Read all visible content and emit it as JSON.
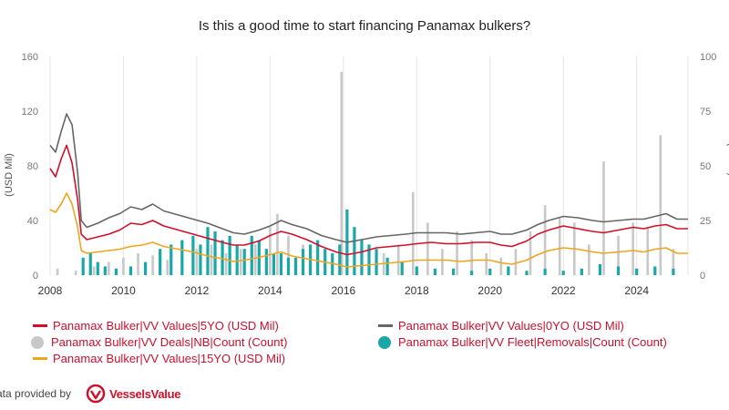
{
  "chart_data": {
    "type": "line",
    "title": "Is this a good time to start financing Panamax bulkers?",
    "ylabel_left": "(USD Mil)",
    "ylabel_right": "(Count)",
    "xlim": [
      2008,
      2025.4
    ],
    "ylim_left": [
      0,
      160
    ],
    "ylim_right": [
      0,
      100
    ],
    "x_ticks": [
      "2008",
      "2010",
      "2012",
      "2014",
      "2016",
      "2018",
      "2020",
      "2022",
      "2024"
    ],
    "y_ticks_left": [
      "0",
      "40",
      "80",
      "120",
      "160"
    ],
    "y_ticks_right": [
      "0",
      "25",
      "50",
      "75",
      "100"
    ],
    "grid": "vertical",
    "legend_position": "bottom",
    "series": [
      {
        "name": "Panamax Bulker|VV Values|5YO (USD Mil)",
        "axis": "left",
        "kind": "line",
        "color": "#d0102a",
        "x": [
          2008.0,
          2008.15,
          2008.3,
          2008.45,
          2008.6,
          2008.75,
          2008.85,
          2009.0,
          2009.3,
          2009.6,
          2009.9,
          2010.2,
          2010.5,
          2010.8,
          2011.1,
          2011.5,
          2011.9,
          2012.3,
          2012.7,
          2013.0,
          2013.3,
          2013.7,
          2014.0,
          2014.3,
          2014.6,
          2015.0,
          2015.4,
          2015.8,
          2016.1,
          2016.5,
          2016.9,
          2017.3,
          2017.7,
          2018.0,
          2018.4,
          2018.8,
          2019.2,
          2019.6,
          2020.0,
          2020.3,
          2020.6,
          2021.0,
          2021.3,
          2021.6,
          2022.0,
          2022.4,
          2022.8,
          2023.1,
          2023.5,
          2023.9,
          2024.2,
          2024.5,
          2024.8,
          2025.1,
          2025.4
        ],
        "y": [
          78,
          72,
          85,
          95,
          82,
          55,
          30,
          26,
          28,
          30,
          33,
          38,
          37,
          40,
          36,
          33,
          30,
          27,
          24,
          22,
          22,
          25,
          29,
          32,
          30,
          26,
          21,
          17,
          15,
          17,
          20,
          21,
          22,
          23,
          24,
          23,
          23,
          24,
          24,
          22,
          21,
          25,
          30,
          33,
          36,
          34,
          32,
          31,
          33,
          35,
          34,
          36,
          37,
          34,
          34
        ]
      },
      {
        "name": "Panamax Bulker|VV Values|0YO (USD Mil)",
        "axis": "left",
        "kind": "line",
        "color": "#666666",
        "x": [
          2008.0,
          2008.15,
          2008.3,
          2008.45,
          2008.6,
          2008.75,
          2008.85,
          2009.0,
          2009.3,
          2009.6,
          2009.9,
          2010.2,
          2010.5,
          2010.8,
          2011.1,
          2011.5,
          2011.9,
          2012.3,
          2012.7,
          2013.0,
          2013.3,
          2013.7,
          2014.0,
          2014.3,
          2014.6,
          2015.0,
          2015.4,
          2015.8,
          2016.1,
          2016.5,
          2016.9,
          2017.3,
          2017.7,
          2018.0,
          2018.4,
          2018.8,
          2019.2,
          2019.6,
          2020.0,
          2020.3,
          2020.6,
          2021.0,
          2021.3,
          2021.6,
          2022.0,
          2022.4,
          2022.8,
          2023.1,
          2023.5,
          2023.9,
          2024.2,
          2024.5,
          2024.8,
          2025.1,
          2025.4
        ],
        "y": [
          95,
          90,
          105,
          118,
          110,
          75,
          40,
          35,
          38,
          42,
          45,
          50,
          48,
          52,
          47,
          44,
          41,
          38,
          34,
          31,
          30,
          33,
          36,
          40,
          37,
          34,
          29,
          26,
          24,
          26,
          28,
          29,
          30,
          31,
          31,
          31,
          30,
          31,
          32,
          30,
          30,
          33,
          37,
          40,
          43,
          42,
          40,
          39,
          40,
          41,
          41,
          43,
          45,
          41,
          41
        ]
      },
      {
        "name": "Panamax Bulker|VV Values|15YO (USD Mil)",
        "axis": "left",
        "kind": "line",
        "color": "#f0a51e",
        "x": [
          2008.0,
          2008.15,
          2008.3,
          2008.45,
          2008.6,
          2008.75,
          2008.85,
          2009.0,
          2009.3,
          2009.6,
          2009.9,
          2010.2,
          2010.5,
          2010.8,
          2011.1,
          2011.5,
          2011.9,
          2012.3,
          2012.7,
          2013.0,
          2013.3,
          2013.7,
          2014.0,
          2014.3,
          2014.6,
          2015.0,
          2015.4,
          2015.8,
          2016.1,
          2016.5,
          2016.9,
          2017.3,
          2017.7,
          2018.0,
          2018.4,
          2018.8,
          2019.2,
          2019.6,
          2020.0,
          2020.3,
          2020.6,
          2021.0,
          2021.3,
          2021.6,
          2022.0,
          2022.4,
          2022.8,
          2023.1,
          2023.5,
          2023.9,
          2024.2,
          2024.5,
          2024.8,
          2025.1,
          2025.4
        ],
        "y": [
          48,
          46,
          52,
          60,
          52,
          35,
          18,
          16,
          17,
          18,
          19,
          21,
          22,
          24,
          21,
          19,
          17,
          14,
          12,
          10,
          11,
          13,
          15,
          17,
          14,
          12,
          10,
          8,
          6,
          7,
          8,
          9,
          10,
          11,
          11,
          11,
          10,
          11,
          11,
          9,
          8,
          11,
          15,
          18,
          20,
          19,
          17,
          16,
          17,
          18,
          17,
          19,
          20,
          16,
          16
        ]
      },
      {
        "name": "Panamax Bulker|VV Deals|NB|Count (Count)",
        "axis": "right",
        "kind": "bar",
        "color": "#c8c8c8",
        "x": [
          2008.2,
          2008.7,
          2009.2,
          2009.6,
          2010.0,
          2010.4,
          2010.8,
          2011.2,
          2011.6,
          2012.0,
          2012.4,
          2012.8,
          2013.2,
          2013.6,
          2014.0,
          2014.2,
          2014.5,
          2014.9,
          2015.3,
          2015.7,
          2015.95,
          2016.3,
          2016.7,
          2017.1,
          2017.5,
          2017.9,
          2018.3,
          2018.7,
          2019.1,
          2019.5,
          2019.9,
          2020.3,
          2020.7,
          2021.1,
          2021.5,
          2021.9,
          2022.3,
          2022.7,
          2023.1,
          2023.5,
          2023.9,
          2024.3,
          2024.65,
          2025.0
        ],
        "y": [
          3,
          2,
          4,
          6,
          8,
          10,
          9,
          7,
          6,
          12,
          14,
          10,
          12,
          14,
          22,
          28,
          18,
          14,
          8,
          6,
          93,
          8,
          12,
          10,
          14,
          38,
          24,
          12,
          20,
          16,
          10,
          8,
          12,
          20,
          32,
          26,
          24,
          14,
          52,
          18,
          24,
          22,
          64,
          12
        ]
      },
      {
        "name": "Panamax Bulker|VV Fleet|Removals|Count (Count)",
        "axis": "right",
        "kind": "bar",
        "color": "#1aa7a7",
        "x": [
          2008.9,
          2009.1,
          2009.3,
          2009.5,
          2009.8,
          2010.2,
          2010.6,
          2011.0,
          2011.3,
          2011.6,
          2011.9,
          2012.1,
          2012.3,
          2012.5,
          2012.7,
          2012.9,
          2013.1,
          2013.3,
          2013.5,
          2013.7,
          2013.9,
          2014.1,
          2014.3,
          2014.5,
          2014.7,
          2014.9,
          2015.1,
          2015.3,
          2015.5,
          2015.7,
          2015.9,
          2016.1,
          2016.3,
          2016.5,
          2016.7,
          2016.9,
          2017.2,
          2017.6,
          2018.0,
          2018.5,
          2019.0,
          2019.5,
          2020.0,
          2020.5,
          2021.0,
          2021.5,
          2022.0,
          2022.5,
          2023.0,
          2023.5,
          2024.0,
          2024.5,
          2025.0
        ],
        "y": [
          8,
          10,
          6,
          4,
          3,
          4,
          6,
          12,
          14,
          16,
          18,
          14,
          22,
          20,
          16,
          18,
          14,
          12,
          18,
          16,
          12,
          10,
          10,
          8,
          8,
          12,
          14,
          16,
          12,
          10,
          14,
          30,
          22,
          16,
          14,
          12,
          8,
          6,
          4,
          3,
          3,
          2,
          3,
          4,
          2,
          3,
          2,
          3,
          5,
          4,
          3,
          4,
          3
        ]
      }
    ]
  },
  "legend": [
    {
      "label": "Panamax Bulker|VV Values|5YO (USD Mil)",
      "color": "#d0102a",
      "marker": "line"
    },
    {
      "label": "Panamax Bulker|VV Values|0YO (USD Mil)",
      "color": "#666666",
      "marker": "line"
    },
    {
      "label": "Panamax Bulker|VV Deals|NB|Count (Count)",
      "color": "#c8c8c8",
      "marker": "dot"
    },
    {
      "label": "Panamax Bulker|VV Fleet|Removals|Count (Count)",
      "color": "#1aa7a7",
      "marker": "dot"
    },
    {
      "label": "Panamax Bulker|VV Values|15YO (USD Mil)",
      "color": "#f0a51e",
      "marker": "line"
    }
  ],
  "footer": {
    "text": "ata provided by",
    "brand": "VesselsValue",
    "brand_color": "#d0102a"
  }
}
